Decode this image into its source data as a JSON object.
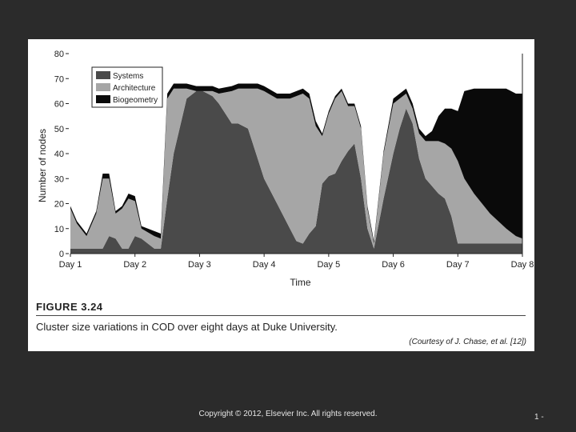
{
  "chart_data": {
    "type": "area",
    "stacked": true,
    "ylabel": "Number of nodes",
    "xlabel": "Time",
    "ylim": [
      0,
      80
    ],
    "yticks": [
      0,
      10,
      20,
      30,
      40,
      50,
      60,
      70,
      80
    ],
    "categories": [
      "Day 1",
      "Day 2",
      "Day 3",
      "Day 4",
      "Day 5",
      "Day 6",
      "Day 7",
      "Day 8"
    ],
    "x": [
      1.0,
      1.1,
      1.25,
      1.4,
      1.5,
      1.6,
      1.7,
      1.8,
      1.9,
      2.0,
      2.1,
      2.3,
      2.4,
      2.5,
      2.6,
      2.8,
      2.95,
      3.05,
      3.2,
      3.3,
      3.5,
      3.6,
      3.75,
      3.9,
      4.0,
      4.2,
      4.4,
      4.5,
      4.6,
      4.7,
      4.8,
      4.9,
      5.0,
      5.1,
      5.2,
      5.3,
      5.4,
      5.5,
      5.6,
      5.7,
      5.85,
      6.0,
      6.1,
      6.2,
      6.3,
      6.4,
      6.5,
      6.6,
      6.7,
      6.8,
      6.9,
      7.0,
      7.1,
      7.25,
      7.5,
      7.75,
      7.9,
      8.0
    ],
    "series": [
      {
        "name": "Systems",
        "color": "#4a4a4a",
        "values": [
          2,
          2,
          2,
          2,
          2,
          7,
          6,
          2,
          2,
          7,
          6,
          2,
          2,
          22,
          40,
          62,
          65,
          65,
          63,
          60,
          52,
          52,
          50,
          38,
          30,
          20,
          10,
          5,
          4,
          8,
          11,
          28,
          31,
          32,
          37,
          41,
          44,
          30,
          10,
          2,
          22,
          40,
          50,
          58,
          52,
          38,
          30,
          27,
          24,
          22,
          15,
          4,
          4,
          4,
          4,
          4,
          4,
          4
        ]
      },
      {
        "name": "Architecture",
        "color": "#a6a6a6",
        "values": [
          16,
          10,
          5,
          14,
          28,
          23,
          10,
          16,
          20,
          14,
          4,
          5,
          4,
          40,
          26,
          4,
          0,
          0,
          2,
          4,
          13,
          14,
          16,
          28,
          35,
          42,
          52,
          58,
          60,
          54,
          40,
          19,
          25,
          30,
          28,
          18,
          15,
          20,
          8,
          2,
          18,
          20,
          12,
          6,
          6,
          10,
          15,
          18,
          21,
          22,
          27,
          33,
          26,
          20,
          12,
          6,
          3,
          2
        ]
      },
      {
        "name": "Biogeometry",
        "color": "#0a0a0a",
        "values": [
          1,
          1,
          1,
          1,
          2,
          2,
          1,
          1,
          2,
          2,
          1,
          2,
          2,
          2,
          2,
          2,
          2,
          2,
          2,
          2,
          2,
          2,
          2,
          2,
          2,
          2,
          2,
          2,
          2,
          2,
          2,
          1,
          1,
          1,
          1,
          1,
          1,
          1,
          1,
          1,
          1,
          2,
          2,
          2,
          2,
          2,
          2,
          4,
          10,
          14,
          16,
          20,
          35,
          42,
          50,
          56,
          57,
          58
        ]
      }
    ],
    "legend": {
      "position": "top-left"
    }
  },
  "figure": {
    "label": "FIGURE 3.24",
    "caption": "Cluster size variations in COD over eight days at Duke University.",
    "courtesy": "(Courtesy of J. Chase, et al. [12])"
  },
  "slide": {
    "copyright": "Copyright © 2012, Elsevier Inc. All rights reserved.",
    "number": "1 -"
  }
}
